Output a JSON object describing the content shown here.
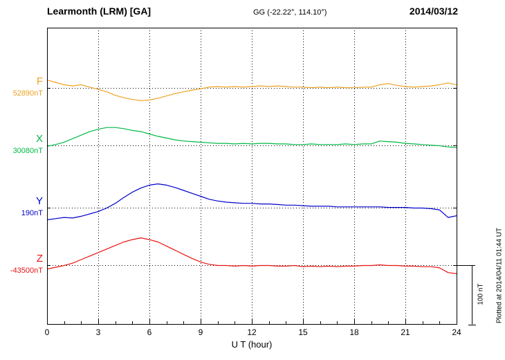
{
  "header": {
    "station_title": "Learmonth (LRM)  [GA]",
    "coordinates": "GG (-22.22°, 114.10°)",
    "date": "2014/03/12"
  },
  "right_side": {
    "scale_label": "100 nT",
    "plotted_note": "Plotted at 2014/04/11 01:44 UT"
  },
  "chart_data": {
    "type": "line",
    "title": "Learmonth (LRM) [GA] magnetogram for 2014/03/12",
    "xlabel": "U T (hour)",
    "ylabel": "",
    "xlim": [
      0,
      24
    ],
    "x_ticks": [
      0,
      3,
      6,
      9,
      12,
      15,
      18,
      21,
      24
    ],
    "x_tick_labels": [
      "0",
      "3",
      "6",
      "9",
      "12",
      "15",
      "18",
      "21",
      "24"
    ],
    "x_minor_step": 1,
    "grid": "dotted vertical lines at 3-hour intervals; dotted horizontal line at each trace baseline",
    "legend_position": "left-margin labels, one per trace",
    "scale": {
      "label": "100 nT",
      "nT": 100,
      "px": 85
    },
    "x_step_hours": 0.5,
    "axis_color": "#000000",
    "series": [
      {
        "name": "F",
        "baseline_label": "52890nT",
        "baseline_value_nT": 52890,
        "color": "#EFA120",
        "baseline_frac": 0.203,
        "offsets_nT": [
          14,
          10,
          6,
          4,
          6,
          2,
          -2,
          -6,
          -12,
          -16,
          -19,
          -21,
          -20,
          -17,
          -13,
          -9,
          -6,
          -3,
          -1,
          2,
          3,
          2,
          3,
          2,
          3,
          4,
          3,
          4,
          3,
          2,
          2,
          1,
          2,
          1,
          2,
          1,
          1,
          2,
          2,
          6,
          8,
          5,
          3,
          2,
          3,
          4,
          6,
          9,
          6
        ]
      },
      {
        "name": "X",
        "baseline_label": "30080nT",
        "baseline_value_nT": 30080,
        "color": "#00B844",
        "baseline_frac": 0.397,
        "offsets_nT": [
          -1,
          2,
          6,
          12,
          18,
          24,
          28,
          31,
          31,
          29,
          26,
          24,
          20,
          16,
          13,
          10,
          8,
          7,
          6,
          5,
          4,
          4,
          3,
          4,
          3,
          4,
          4,
          3,
          3,
          2,
          2,
          3,
          2,
          2,
          2,
          3,
          2,
          3,
          3,
          8,
          7,
          6,
          4,
          3,
          2,
          1,
          0,
          -2,
          -3
        ]
      },
      {
        "name": "Y",
        "baseline_label": "190nT",
        "baseline_value_nT": 190,
        "color": "#0000CC",
        "baseline_frac": 0.607,
        "offsets_nT": [
          -20,
          -18,
          -16,
          -17,
          -14,
          -10,
          -6,
          0,
          8,
          18,
          27,
          34,
          39,
          41,
          39,
          35,
          30,
          25,
          20,
          15,
          12,
          10,
          9,
          8,
          8,
          7,
          7,
          6,
          5,
          5,
          4,
          3,
          3,
          3,
          2,
          2,
          2,
          2,
          2,
          2,
          1,
          1,
          1,
          0,
          0,
          -1,
          -3,
          -16,
          -13
        ]
      },
      {
        "name": "Z",
        "baseline_label": "-43500nT",
        "baseline_value_nT": -43500,
        "color": "#E81212",
        "baseline_frac": 0.801,
        "offsets_nT": [
          -6,
          -3,
          0,
          4,
          10,
          16,
          22,
          28,
          34,
          40,
          44,
          47,
          44,
          40,
          33,
          26,
          19,
          12,
          6,
          2,
          0,
          0,
          -1,
          0,
          -1,
          0,
          0,
          -1,
          -1,
          0,
          -2,
          -1,
          -2,
          -1,
          -2,
          -1,
          -1,
          0,
          0,
          1,
          0,
          0,
          -1,
          -1,
          -2,
          -2,
          -4,
          -12,
          -14
        ]
      }
    ]
  }
}
